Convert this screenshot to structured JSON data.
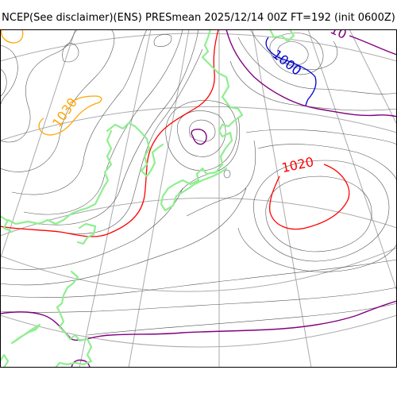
{
  "title": "NCEP(See disclaimer)(ENS) PRESmean 2025/12/14 00Z FT=192 (init 0600Z)",
  "colors": {
    "coastline": "#90ee90",
    "gridlines": "#aaaaaa",
    "isobar_default": "#555555",
    "isobar_1000": "#0000cd",
    "isobar_1010": "#800080",
    "isobar_1020": "#ff0000",
    "isobar_1030": "#ffa500"
  },
  "contour_labels": [
    {
      "id": "label-1030",
      "text": "1030",
      "color": "#ffa500"
    },
    {
      "id": "label-1000",
      "text": "1000",
      "color": "#0000cd"
    },
    {
      "id": "label-1020",
      "text": "1020",
      "color": "#ff0000"
    },
    {
      "id": "label-1010-partial",
      "text": "10",
      "color": "#800080"
    }
  ]
}
